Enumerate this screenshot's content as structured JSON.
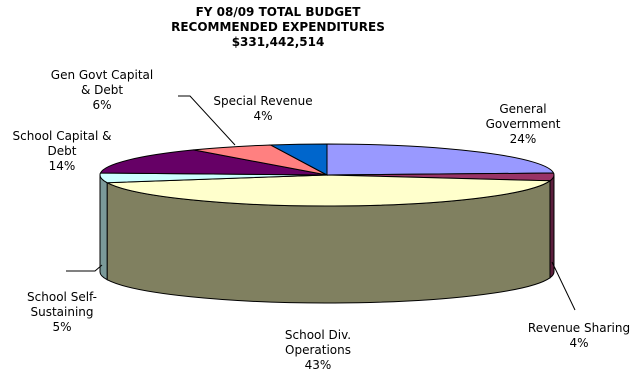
{
  "chart_data": {
    "type": "pie",
    "title_lines": [
      "FY 08/09 TOTAL BUDGET",
      "RECOMMENDED EXPENDITURES",
      "$331,442,514"
    ],
    "legend": "none",
    "three_d": true,
    "slices": [
      {
        "label_lines": [
          "General",
          "Government"
        ],
        "percent_label": "24%",
        "value": 24,
        "color": "#9999ff"
      },
      {
        "label_lines": [
          "Revenue Sharing"
        ],
        "percent_label": "4%",
        "value": 4,
        "color": "#993366"
      },
      {
        "label_lines": [
          "School Div.",
          "Operations"
        ],
        "percent_label": "43%",
        "value": 43,
        "color": "#ffffcc"
      },
      {
        "label_lines": [
          "School Self-",
          "Sustaining"
        ],
        "percent_label": "5%",
        "value": 5,
        "color": "#ccffff"
      },
      {
        "label_lines": [
          "School Capital &",
          "Debt"
        ],
        "percent_label": "14%",
        "value": 14,
        "color": "#660066"
      },
      {
        "label_lines": [
          "Gen Govt Capital",
          "& Debt"
        ],
        "percent_label": "6%",
        "value": 6,
        "color": "#ff8080"
      },
      {
        "label_lines": [
          "Special Revenue"
        ],
        "percent_label": "4%",
        "value": 4,
        "color": "#0066cc"
      }
    ]
  }
}
